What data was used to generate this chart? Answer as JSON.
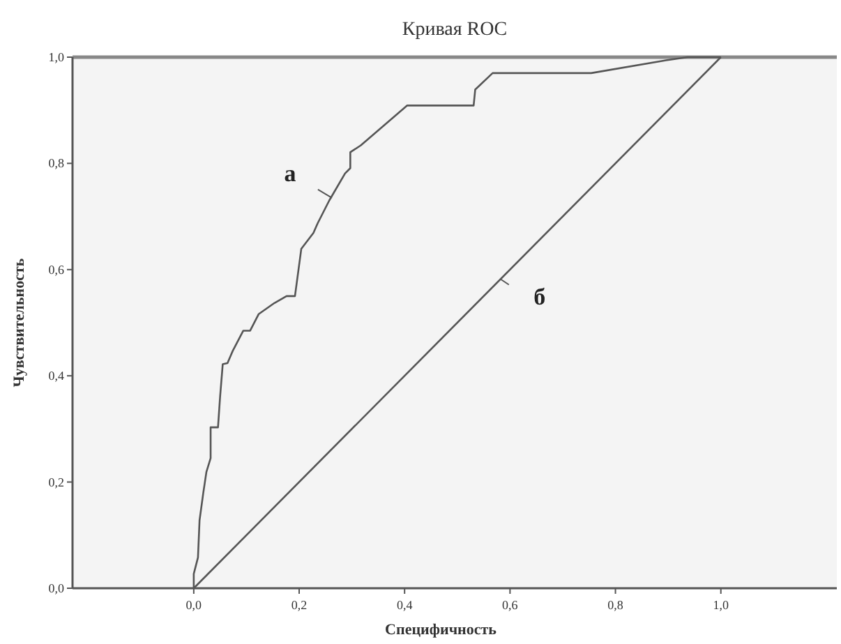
{
  "chart_data": {
    "type": "line",
    "title": "Кривая ROC",
    "xlabel": "Специфичность",
    "ylabel": "Чувствительность",
    "xlim": [
      -0.23,
      1.22
    ],
    "ylim": [
      0,
      1
    ],
    "xticks": [
      {
        "value": 0,
        "label": "0,0"
      },
      {
        "value": 0.2,
        "label": "0,2"
      },
      {
        "value": 0.4,
        "label": "0,4"
      },
      {
        "value": 0.6,
        "label": "0,6"
      },
      {
        "value": 0.8,
        "label": "0,8"
      },
      {
        "value": 1,
        "label": "1,0"
      }
    ],
    "yticks": [
      {
        "value": 0,
        "label": "0,0"
      },
      {
        "value": 0.2,
        "label": "0,2"
      },
      {
        "value": 0.4,
        "label": "0,4"
      },
      {
        "value": 0.6,
        "label": "0,6"
      },
      {
        "value": 0.8,
        "label": "0,8"
      },
      {
        "value": 1,
        "label": "1,0"
      }
    ],
    "grid": false,
    "marker": "none",
    "line_style": "solid",
    "series": [
      {
        "color": "#555555",
        "x": [
          0,
          0,
          0.008,
          0.011,
          0.018,
          0.024,
          0.032,
          0.032,
          0.046,
          0.05,
          0.055,
          0.064,
          0.074,
          0.094,
          0.107,
          0.123,
          0.153,
          0.176,
          0.192,
          0.204,
          0.227,
          0.235,
          0.257,
          0.287,
          0.297,
          0.297,
          0.317,
          0.405,
          0.531,
          0.534,
          0.567,
          0.754,
          0.896,
          0.937,
          1
        ],
        "values": [
          0,
          0.027,
          0.058,
          0.128,
          0.179,
          0.219,
          0.245,
          0.303,
          0.303,
          0.361,
          0.422,
          0.424,
          0.447,
          0.485,
          0.485,
          0.516,
          0.537,
          0.55,
          0.55,
          0.639,
          0.669,
          0.687,
          0.73,
          0.781,
          0.791,
          0.821,
          0.834,
          0.909,
          0.909,
          0.939,
          0.97,
          0.97,
          0.994,
          1,
          1
        ]
      },
      {
        "color": "#555555",
        "x": [
          0,
          1
        ],
        "values": [
          0,
          1
        ]
      }
    ],
    "annotations": [
      {
        "text": "а",
        "x": 0.262,
        "y": 0.735
      },
      {
        "text": "б",
        "x": 0.582,
        "y": 0.582
      }
    ]
  }
}
